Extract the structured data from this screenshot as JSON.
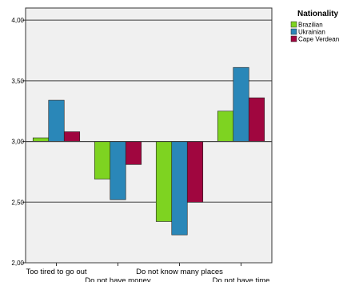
{
  "chart_data": {
    "type": "bar",
    "title": "",
    "xlabel": "",
    "ylabel": "",
    "categories": [
      "Too tired to go out",
      "Do not have money",
      "Do not know many places",
      "Do not have  time"
    ],
    "series": [
      {
        "name": "Brazilian",
        "color": "#7ed321",
        "values": [
          3.03,
          2.69,
          2.34,
          3.25
        ]
      },
      {
        "name": "Ukrainian",
        "color": "#2a87b8",
        "values": [
          3.34,
          2.52,
          2.23,
          3.61
        ]
      },
      {
        "name": "Cape Verdean",
        "color": "#a0063f",
        "values": [
          3.08,
          2.81,
          2.5,
          3.36
        ]
      }
    ],
    "ylim": [
      2.0,
      4.1
    ],
    "baseline": 3.0,
    "yticks": [
      2.0,
      2.5,
      3.0,
      3.5,
      4.0
    ],
    "ytick_labels": [
      "2,00",
      "2,50",
      "3,00",
      "3,50",
      "4,00"
    ],
    "grid": true,
    "legend": {
      "title": "Nationality",
      "placement": "top-right"
    },
    "colors": {
      "plot_background": "#f0f0f0",
      "gridline": "#3c3c3c",
      "bar_outline": "#222222"
    }
  }
}
